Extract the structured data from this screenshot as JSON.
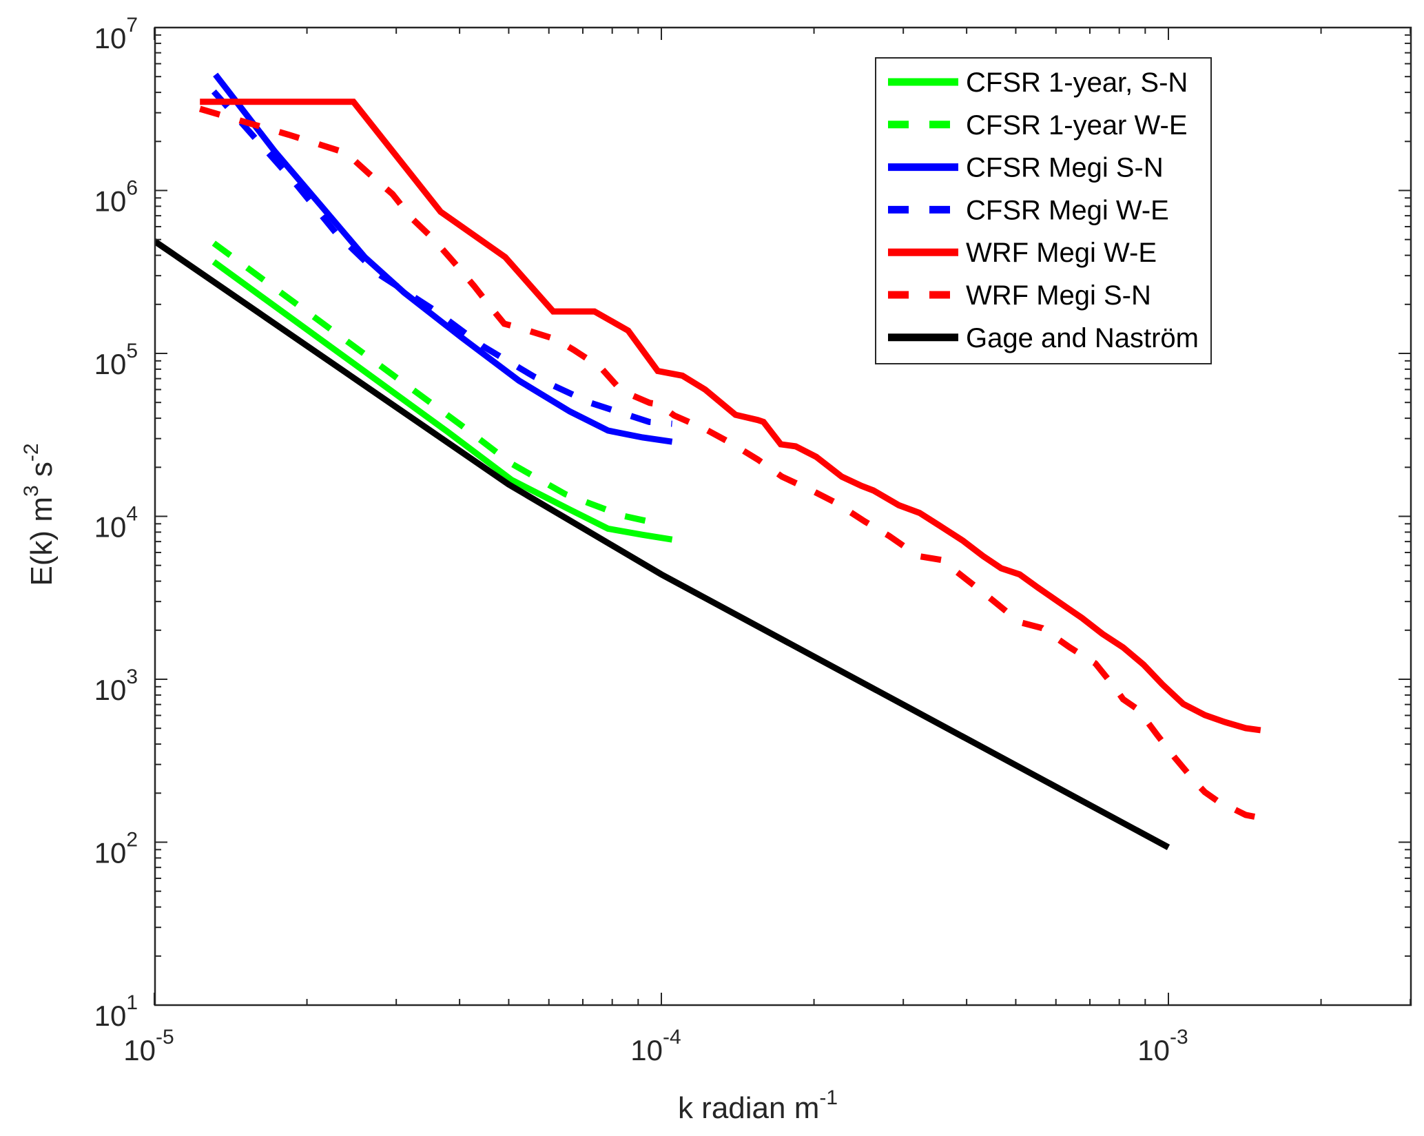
{
  "chart_data": {
    "type": "line",
    "title": "",
    "xlabel": {
      "base": "k radian m",
      "sup": "-1"
    },
    "ylabel": {
      "parts": [
        {
          "text": "E(k) m",
          "sup": "3"
        },
        {
          "text": " s",
          "sup": "-2"
        }
      ]
    },
    "xscale": "log",
    "yscale": "log",
    "xlim": [
      1e-05,
      0.0031
    ],
    "ylim": [
      10,
      10000000.0
    ],
    "grid": false,
    "legend_position": "top-right",
    "x_ticks": [
      {
        "value": 1e-05,
        "base": "10",
        "exp": "-5"
      },
      {
        "value": 0.0001,
        "base": "10",
        "exp": "-4"
      },
      {
        "value": 0.001,
        "base": "10",
        "exp": "-3"
      }
    ],
    "y_ticks": [
      {
        "value": 10.0,
        "base": "10",
        "exp": "1"
      },
      {
        "value": 100.0,
        "base": "10",
        "exp": "2"
      },
      {
        "value": 1000.0,
        "base": "10",
        "exp": "3"
      },
      {
        "value": 10000.0,
        "base": "10",
        "exp": "4"
      },
      {
        "value": 100000.0,
        "base": "10",
        "exp": "5"
      },
      {
        "value": 1000000.0,
        "base": "10",
        "exp": "6"
      },
      {
        "value": 10000000.0,
        "base": "10",
        "exp": "7"
      }
    ],
    "series": [
      {
        "name": "CFSR 1-year, S-N",
        "color": "#00ff00",
        "style": "solid",
        "points": [
          [
            1.31e-05,
            365000.0
          ],
          [
            3.79e-05,
            33000.0
          ],
          [
            5.07e-05,
            16700.0
          ],
          [
            6.6e-05,
            11000.0
          ],
          [
            7.85e-05,
            8400.0
          ],
          [
            9.18e-05,
            7700.0
          ],
          [
            0.000105,
            7200.0
          ]
        ]
      },
      {
        "name": "CFSR 1-year W-E",
        "color": "#00ff00",
        "style": "dashed",
        "points": [
          [
            1.31e-05,
            475000.0
          ],
          [
            4.04e-05,
            36000.0
          ],
          [
            5.07e-05,
            21000.0
          ],
          [
            6.46e-05,
            13700.0
          ],
          [
            8.37e-05,
            10100.0
          ],
          [
            9.6e-05,
            9200.0
          ]
        ]
      },
      {
        "name": "CFSR Megi S-N",
        "color": "#0000ff",
        "style": "solid",
        "points": [
          [
            1.32e-05,
            5150000.0
          ],
          [
            1.73e-05,
            1730000.0
          ],
          [
            2.14e-05,
            796000.0
          ],
          [
            2.6e-05,
            390000.0
          ],
          [
            3.11e-05,
            236000.0
          ],
          [
            4.04e-05,
            125000.0
          ],
          [
            5.24e-05,
            68000.0
          ],
          [
            6.6e-05,
            44000.0
          ],
          [
            7.85e-05,
            33600.0
          ],
          [
            9.18e-05,
            30500.0
          ],
          [
            0.000105,
            28700.0
          ]
        ]
      },
      {
        "name": "CFSR Megi W-E",
        "color": "#0000ff",
        "style": "dashed",
        "points": [
          [
            1.31e-05,
            4050000.0
          ],
          [
            1.58e-05,
            2100000.0
          ],
          [
            1.9e-05,
            1100000.0
          ],
          [
            2.28e-05,
            550000.0
          ],
          [
            2.77e-05,
            306000.0
          ],
          [
            3.56e-05,
            185000.0
          ],
          [
            4.44e-05,
            111000.0
          ],
          [
            5.61e-05,
            72000.0
          ],
          [
            7.25e-05,
            49700.0
          ],
          [
            9.46e-05,
            38000.0
          ],
          [
            0.000105,
            37000.0
          ]
        ]
      },
      {
        "name": "WRF Megi W-E",
        "color": "#ff0000",
        "style": "solid",
        "points": [
          [
            1.23e-05,
            3500000.0
          ],
          [
            2.47e-05,
            3500000.0
          ],
          [
            3.67e-05,
            740000.0
          ],
          [
            4.92e-05,
            390000.0
          ],
          [
            6.12e-05,
            181000.0
          ],
          [
            7.38e-05,
            181000.0
          ],
          [
            8.6e-05,
            138000.0
          ],
          [
            9.84e-05,
            78000.0
          ],
          [
            0.00011,
            73000.0
          ],
          [
            0.000122,
            60000.0
          ],
          [
            0.00014,
            42000.0
          ],
          [
            0.000155,
            39000.0
          ],
          [
            0.000159,
            38000.0
          ],
          [
            0.000172,
            27700.0
          ],
          [
            0.000184,
            26900.0
          ],
          [
            0.000202,
            23200.0
          ],
          [
            0.000227,
            17500.0
          ],
          [
            0.000248,
            15400.0
          ],
          [
            0.000262,
            14400.0
          ],
          [
            0.000294,
            11700.0
          ],
          [
            0.000323,
            10500.0
          ],
          [
            0.000353,
            8800.0
          ],
          [
            0.000393,
            7100.0
          ],
          [
            0.000431,
            5700.0
          ],
          [
            0.000468,
            4800.0
          ],
          [
            0.000509,
            4400.0
          ],
          [
            0.000553,
            3650.0
          ],
          [
            0.000633,
            2730.0
          ],
          [
            0.000675,
            2380.0
          ],
          [
            0.000741,
            1900.0
          ],
          [
            0.000814,
            1570.0
          ],
          [
            0.000893,
            1230.0
          ],
          [
            0.000972,
            933
          ],
          [
            0.00107,
            705
          ],
          [
            0.00118,
            603
          ],
          [
            0.00129,
            547
          ],
          [
            0.00142,
            501
          ],
          [
            0.00152,
            487
          ]
        ]
      },
      {
        "name": "WRF Megi S-N",
        "color": "#ff0000",
        "style": "dashed",
        "points": [
          [
            1.23e-05,
            3170000.0
          ],
          [
            1.84e-05,
            2200000.0
          ],
          [
            2.39e-05,
            1700000.0
          ],
          [
            2.65e-05,
            1270000.0
          ],
          [
            2.95e-05,
            950000.0
          ],
          [
            3.22e-05,
            675000.0
          ],
          [
            3.56e-05,
            500000.0
          ],
          [
            3.89e-05,
            365000.0
          ],
          [
            4.27e-05,
            260000.0
          ],
          [
            4.68e-05,
            181000.0
          ],
          [
            4.9e-05,
            152000.0
          ],
          [
            5.19e-05,
            145000.0
          ],
          [
            6.2e-05,
            122000.0
          ],
          [
            6.72e-05,
            105000.0
          ],
          [
            7.59e-05,
            82000.0
          ],
          [
            8.34e-05,
            59000.0
          ],
          [
            9.48e-05,
            49700.0
          ],
          [
            9.9e-05,
            48700.0
          ],
          [
            0.000106,
            41600.0
          ],
          [
            0.000122,
            34300.0
          ],
          [
            0.000137,
            28200.0
          ],
          [
            0.000155,
            22300.0
          ],
          [
            0.000173,
            17500.0
          ],
          [
            0.000198,
            14400.0
          ],
          [
            0.000221,
            12100.0
          ],
          [
            0.000252,
            9300.0
          ],
          [
            0.000281,
            7600.0
          ],
          [
            0.000321,
            5700.0
          ],
          [
            0.000357,
            5400.0
          ],
          [
            0.000431,
            3410.0
          ],
          [
            0.000509,
            2240.0
          ],
          [
            0.000564,
            2060.0
          ],
          [
            0.000639,
            1570.0
          ],
          [
            0.000718,
            1250.0
          ],
          [
            0.000788,
            873
          ],
          [
            0.000814,
            754
          ],
          [
            0.000872,
            651
          ],
          [
            0.000951,
            454
          ],
          [
            0.00103,
            330
          ],
          [
            0.00113,
            234
          ],
          [
            0.00118,
            203
          ],
          [
            0.00125,
            179
          ],
          [
            0.00142,
            147
          ],
          [
            0.00152,
            141
          ]
        ]
      },
      {
        "name": "Gage and Naström",
        "color": "#000000",
        "style": "solid",
        "points": [
          [
            1e-05,
            490000.0
          ],
          [
            5e-05,
            15700.0
          ],
          [
            0.0001,
            4400.0
          ],
          [
            0.001,
            93
          ]
        ]
      }
    ]
  }
}
